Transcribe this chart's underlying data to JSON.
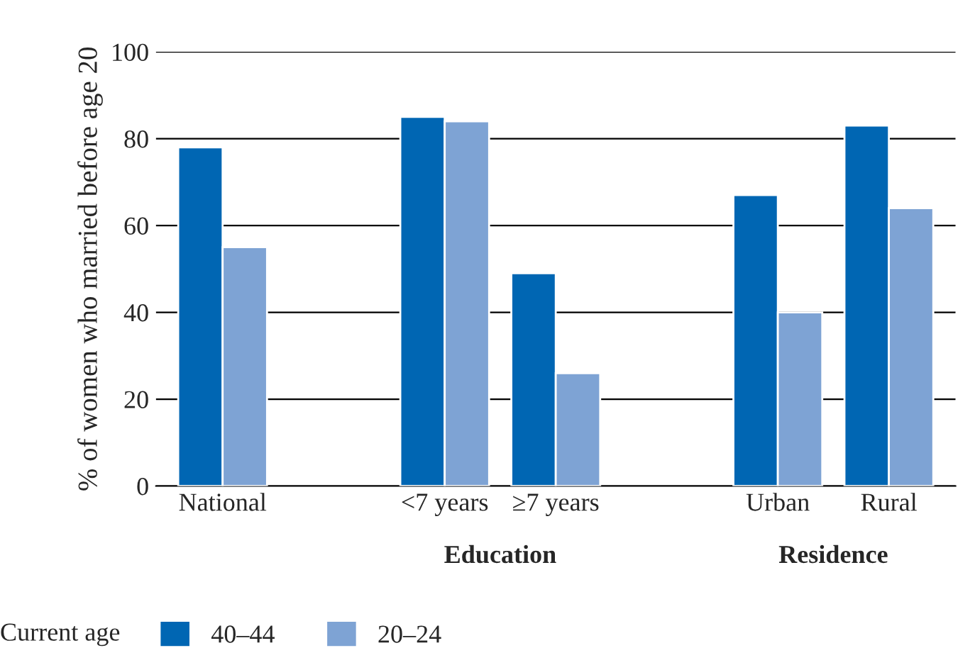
{
  "chart_data": {
    "type": "bar",
    "ylabel": "% of women who married before age 20",
    "categories": [
      "National",
      null,
      "<7 years",
      "≥7 years",
      null,
      "Urban",
      "Rural"
    ],
    "series": [
      {
        "name": "40–44",
        "color": "#0066b3",
        "values": [
          78,
          null,
          85,
          49,
          null,
          67,
          83
        ]
      },
      {
        "name": "20–24",
        "color": "#7ea3d4",
        "values": [
          55,
          null,
          84,
          26,
          null,
          40,
          64
        ]
      }
    ],
    "annotations": [
      "Education",
      "Residence"
    ],
    "legend_title": "Current age",
    "legend": "bottom",
    "ylim": [
      0,
      100
    ],
    "yticks": [
      0,
      20,
      40,
      60,
      80,
      100
    ],
    "grid": "y"
  }
}
